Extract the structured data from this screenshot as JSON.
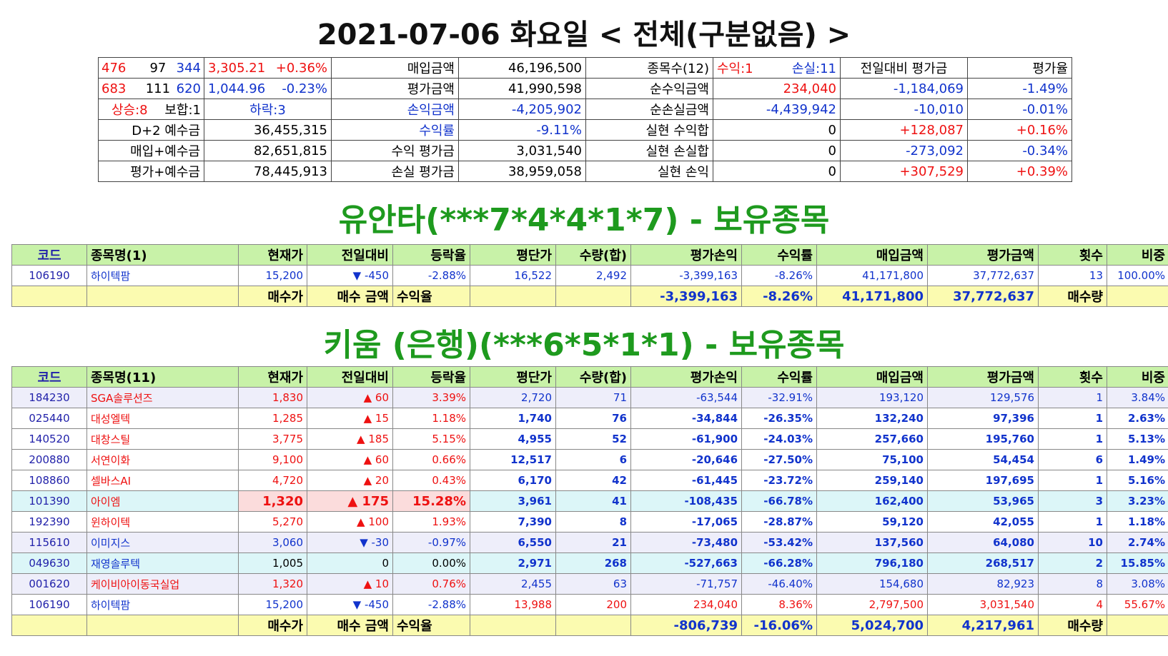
{
  "main_title": "2021-07-06 화요일 < 전체(구분없음) >",
  "summary": {
    "row1": [
      "476",
      "97",
      "344",
      "3,305.21",
      "+0.36%",
      "매입금액",
      "46,196,500",
      "종목수(12)",
      "수익:1",
      "손실:11",
      "전일대비 평가금",
      "평가율"
    ],
    "row2": [
      "683",
      "111",
      "620",
      "1,044.96",
      "-0.23%",
      "평가금액",
      "41,990,598",
      "순수익금액",
      "234,040",
      "-1,184,069",
      "-1.49%"
    ],
    "row3": [
      "상승:8",
      "보합:1",
      "하락:3",
      "손익금액",
      "-4,205,902",
      "순손실금액",
      "-4,439,942",
      "-10,010",
      "-0.01%"
    ],
    "row4": [
      "D+2 예수금",
      "36,455,315",
      "수익률",
      "-9.11%",
      "실현 수익합",
      "0",
      "+128,087",
      "+0.16%"
    ],
    "row5": [
      "매입+예수금",
      "82,651,815",
      "수익 평가금",
      "3,031,540",
      "실현 손실합",
      "0",
      "-273,092",
      "-0.34%"
    ],
    "row6": [
      "평가+예수금",
      "78,445,913",
      "손실 평가금",
      "38,959,058",
      "실현 손익",
      "0",
      "+307,529",
      "+0.39%"
    ]
  },
  "yuanta": {
    "title": "유안타(***7*4*4*1*7) - 보유종목",
    "headers": [
      "코드",
      "종목명(1)",
      "현재가",
      "전일대비",
      "등락율",
      "평단가",
      "수량(합)",
      "평가손익",
      "수익률",
      "매입금액",
      "평가금액",
      "횟수",
      "비중"
    ],
    "rows": [
      {
        "code": "106190",
        "name": "하이텍팜",
        "price": "15,200",
        "dir": "down",
        "change": "-450",
        "rate": "-2.88%",
        "avg": "16,522",
        "qty": "2,492",
        "pl": "-3,399,163",
        "ret": "-8.26%",
        "buy": "41,171,800",
        "eval": "37,772,637",
        "cnt": "13",
        "weight": "100.00%"
      }
    ],
    "footer": {
      "buy_price": "매수가",
      "buy_amount": "매수 금액",
      "yield": "수익율",
      "pl": "-3,399,163",
      "ret": "-8.26%",
      "buy": "41,171,800",
      "eval": "37,772,637",
      "qty_label": "매수량"
    }
  },
  "kiwoom": {
    "title": "키움 (은행)(***6*5*1*1) - 보유종목",
    "headers": [
      "코드",
      "종목명(11)",
      "현재가",
      "전일대비",
      "등락율",
      "평단가",
      "수량(합)",
      "평가손익",
      "수익률",
      "매입금액",
      "평가금액",
      "횟수",
      "비중"
    ],
    "rows": [
      {
        "code": "184230",
        "name": "SGA솔루션즈",
        "price": "1,830",
        "dir": "up",
        "change": "60",
        "rate": "3.39%",
        "avg": "2,720",
        "qty": "71",
        "pl": "-63,544",
        "ret": "-32.91%",
        "buy": "193,120",
        "eval": "129,576",
        "cnt": "1",
        "weight": "3.84%"
      },
      {
        "code": "025440",
        "name": "대성엘텍",
        "price": "1,285",
        "dir": "up",
        "change": "15",
        "rate": "1.18%",
        "avg": "1,740",
        "qty": "76",
        "pl": "-34,844",
        "ret": "-26.35%",
        "buy": "132,240",
        "eval": "97,396",
        "cnt": "1",
        "weight": "2.63%"
      },
      {
        "code": "140520",
        "name": "대창스틸",
        "price": "3,775",
        "dir": "up",
        "change": "185",
        "rate": "5.15%",
        "avg": "4,955",
        "qty": "52",
        "pl": "-61,900",
        "ret": "-24.03%",
        "buy": "257,660",
        "eval": "195,760",
        "cnt": "1",
        "weight": "5.13%"
      },
      {
        "code": "200880",
        "name": "서연이화",
        "price": "9,100",
        "dir": "up",
        "change": "60",
        "rate": "0.66%",
        "avg": "12,517",
        "qty": "6",
        "pl": "-20,646",
        "ret": "-27.50%",
        "buy": "75,100",
        "eval": "54,454",
        "cnt": "6",
        "weight": "1.49%"
      },
      {
        "code": "108860",
        "name": "셀바스AI",
        "price": "4,720",
        "dir": "up",
        "change": "20",
        "rate": "0.43%",
        "avg": "6,170",
        "qty": "42",
        "pl": "-61,445",
        "ret": "-23.72%",
        "buy": "259,140",
        "eval": "197,695",
        "cnt": "1",
        "weight": "5.16%"
      },
      {
        "code": "101390",
        "name": "아이엠",
        "price": "1,320",
        "dir": "up",
        "change": "175",
        "rate": "15.28%",
        "avg": "3,961",
        "qty": "41",
        "pl": "-108,435",
        "ret": "-66.78%",
        "buy": "162,400",
        "eval": "53,965",
        "cnt": "3",
        "weight": "3.23%"
      },
      {
        "code": "192390",
        "name": "윈하이텍",
        "price": "5,270",
        "dir": "up",
        "change": "100",
        "rate": "1.93%",
        "avg": "7,390",
        "qty": "8",
        "pl": "-17,065",
        "ret": "-28.87%",
        "buy": "59,120",
        "eval": "42,055",
        "cnt": "1",
        "weight": "1.18%"
      },
      {
        "code": "115610",
        "name": "이미지스",
        "price": "3,060",
        "dir": "down",
        "change": "-30",
        "rate": "-0.97%",
        "avg": "6,550",
        "qty": "21",
        "pl": "-73,480",
        "ret": "-53.42%",
        "buy": "137,560",
        "eval": "64,080",
        "cnt": "10",
        "weight": "2.74%"
      },
      {
        "code": "049630",
        "name": "재영솔루텍",
        "price": "1,005",
        "dir": "flat",
        "change": "0",
        "rate": "0.00%",
        "avg": "2,971",
        "qty": "268",
        "pl": "-527,663",
        "ret": "-66.28%",
        "buy": "796,180",
        "eval": "268,517",
        "cnt": "2",
        "weight": "15.85%"
      },
      {
        "code": "001620",
        "name": "케이비아이동국실업",
        "price": "1,320",
        "dir": "up",
        "change": "10",
        "rate": "0.76%",
        "avg": "2,455",
        "qty": "63",
        "pl": "-71,757",
        "ret": "-46.40%",
        "buy": "154,680",
        "eval": "82,923",
        "cnt": "8",
        "weight": "3.08%"
      },
      {
        "code": "106190",
        "name": "하이텍팜",
        "price": "15,200",
        "dir": "down",
        "change": "-450",
        "rate": "-2.88%",
        "avg": "13,988",
        "qty": "200",
        "pl": "234,040",
        "ret": "8.36%",
        "buy": "2,797,500",
        "eval": "3,031,540",
        "cnt": "4",
        "weight": "55.67%"
      }
    ],
    "footer": {
      "buy_price": "매수가",
      "buy_amount": "매수 금액",
      "yield": "수익율",
      "pl": "-806,739",
      "ret": "-16.06%",
      "buy": "5,024,700",
      "eval": "4,217,961",
      "qty_label": "매수량"
    }
  }
}
